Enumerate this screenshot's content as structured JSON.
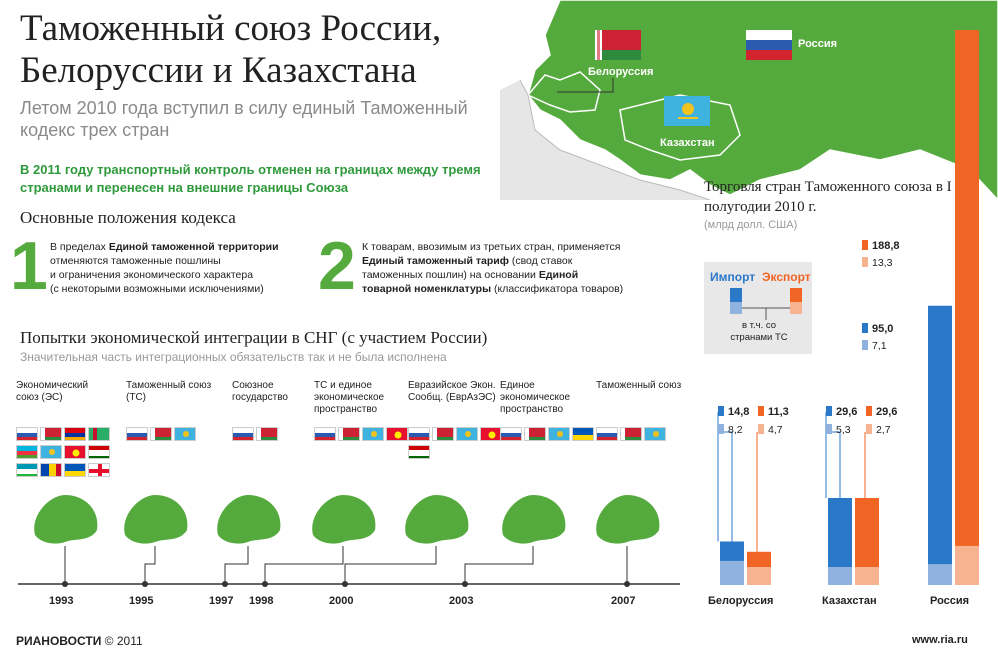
{
  "header": {
    "title_line1": "Таможенный союз России,",
    "title_line2": "Белоруссии и Казахстана",
    "subtitle": "Летом 2010 года вступил в силу единый Таможенный кодекс трех стран",
    "notice": "В 2011 году транспортный контроль отменен на границах между тремя странами и перенесен на внешние границы Союза"
  },
  "map": {
    "labels": {
      "belarus": "Белоруссия",
      "russia": "Россия",
      "kazakhstan": "Казахстан"
    }
  },
  "code": {
    "title": "Основные положения кодекса",
    "points": [
      {
        "num": "1",
        "lines": [
          {
            "pre": "В пределах ",
            "bold": "Единой таможенной территории",
            "post": ""
          },
          {
            "pre": "отменяются таможенные пошлины",
            "bold": "",
            "post": ""
          },
          {
            "pre": "и ограничения экономического характера",
            "bold": "",
            "post": ""
          },
          {
            "pre": "(с некоторыми возможными исключениями)",
            "bold": "",
            "post": ""
          }
        ]
      },
      {
        "num": "2",
        "lines": [
          {
            "pre": "К товарам, ввозимым из третьих стран, применяется",
            "bold": "",
            "post": ""
          },
          {
            "pre": "",
            "bold": "Единый таможенный тариф",
            "post": " (свод ставок"
          },
          {
            "pre": "таможенных пошлин) на основании ",
            "bold": "Единой",
            "post": ""
          },
          {
            "pre": "",
            "bold": "товарной номенклатуры",
            "post": " (классификатора товаров)"
          }
        ]
      }
    ]
  },
  "integration": {
    "title": "Попытки экономической интеграции в СНГ (с участием России)",
    "subtitle": "Значительная часть интеграционных обязательств так и не была исполнена",
    "stages": [
      {
        "label": "Экономический союз (ЭС)",
        "flags": [
          "ru",
          "by",
          "am",
          "tm",
          "az",
          "kz",
          "kg",
          "tj",
          "uz",
          "md",
          "ua",
          "ge"
        ]
      },
      {
        "label": "Таможенный союз (ТС)",
        "flags": [
          "ru",
          "by",
          "kz"
        ]
      },
      {
        "label": "Союзное государство",
        "flags": [
          "ru",
          "by"
        ]
      },
      {
        "label": "ТС и единое экономическое пространство",
        "flags": [
          "ru",
          "by",
          "kz",
          "kg"
        ]
      },
      {
        "label": "Евразийское Экон. Сообщ. (ЕврАзЭС)",
        "flags": [
          "ru",
          "by",
          "kz",
          "kg",
          "tj"
        ]
      },
      {
        "label": "Единое экономическое пространство",
        "flags": [
          "ru",
          "by",
          "kz",
          "ua"
        ]
      },
      {
        "label": "Таможенный союз",
        "flags": [
          "ru",
          "by",
          "kz"
        ]
      }
    ],
    "years": [
      "1993",
      "1995",
      "1997",
      "1998",
      "2000",
      "2003",
      "2007"
    ]
  },
  "trade": {
    "title": "Торговля стран Таможенного союза в I полугодии 2010 г.",
    "unit": "(млрд долл. США)",
    "legend": {
      "import": "Импорт",
      "export": "Экспорт",
      "note": "в т.ч. со странами ТС"
    },
    "colors": {
      "import": "#2a78c8",
      "import_light": "#8fb2e0",
      "export": "#f06424",
      "export_light": "#f7b28f"
    },
    "countries": [
      {
        "name": "Белоруссия",
        "import": "14,8",
        "import_ts": "8,2",
        "export": "11,3",
        "export_ts": "4,7"
      },
      {
        "name": "Казахстан",
        "import": "29,6",
        "import_ts": "5,3",
        "export": "29,6",
        "export_ts": "2,7"
      },
      {
        "name": "Россия",
        "import": "95,0",
        "import_ts": "7,1",
        "export": "188,8",
        "export_ts": "13,3"
      }
    ]
  },
  "chart_data": {
    "type": "bar",
    "title": "Торговля стран Таможенного союза в I полугодии 2010 г.",
    "ylabel": "(млрд долл. США)",
    "categories": [
      "Белоруссия",
      "Казахстан",
      "Россия"
    ],
    "series": [
      {
        "name": "Импорт",
        "values": [
          14.8,
          29.6,
          95.0
        ]
      },
      {
        "name": "Экспорт",
        "values": [
          11.3,
          29.6,
          188.8
        ]
      }
    ],
    "sub_series": [
      {
        "values": [
          8.2,
          5.3,
          7.1
        ]
      },
      {
        "values": [
          4.7,
          2.7,
          13.3
        ]
      }
    ]
  },
  "footer": {
    "logo": "РИАНОВОСТИ",
    "copyright": "© 2011",
    "url": "www.ria.ru"
  }
}
